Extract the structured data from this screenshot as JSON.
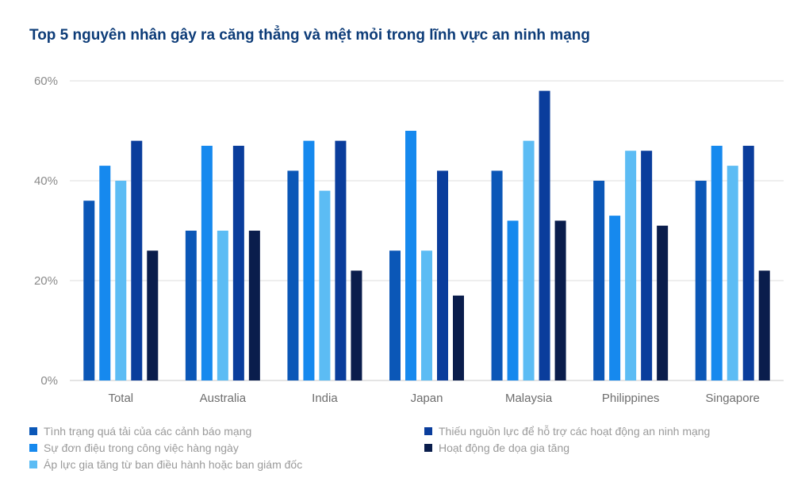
{
  "chart_data": {
    "type": "bar",
    "title": "Top 5 nguyên nhân gây ra căng thẳng và mệt mỏi trong lĩnh vực an ninh mạng",
    "categories": [
      "Total",
      "Australia",
      "India",
      "Japan",
      "Malaysia",
      "Philippines",
      "Singapore"
    ],
    "ylim": [
      0,
      60
    ],
    "yticks": [
      "0%",
      "20%",
      "40%",
      "60%"
    ],
    "yticks_values": [
      0,
      20,
      40,
      60
    ],
    "grid": true,
    "legend_position": "bottom",
    "series": [
      {
        "name": "Tình trạng quá tải của các cảnh báo mạng",
        "color": "#0b57b7",
        "values": [
          36,
          30,
          42,
          26,
          42,
          40,
          40
        ]
      },
      {
        "name": "Sự đơn điệu trong công việc hàng ngày",
        "color": "#1689ee",
        "values": [
          43,
          47,
          48,
          50,
          32,
          33,
          47
        ]
      },
      {
        "name": "Áp lực gia tăng từ ban điều hành hoặc ban giám đốc",
        "color": "#5cbcf4",
        "values": [
          40,
          30,
          38,
          26,
          48,
          46,
          43
        ]
      },
      {
        "name": "Thiếu nguồn lực để hỗ trợ các hoạt động an ninh mạng",
        "color": "#0a3d9c",
        "values": [
          48,
          47,
          48,
          42,
          58,
          46,
          47
        ]
      },
      {
        "name": "Hoạt động đe dọa gia tăng",
        "color": "#0a1d4c",
        "values": [
          26,
          30,
          22,
          17,
          32,
          31,
          22
        ]
      }
    ]
  }
}
